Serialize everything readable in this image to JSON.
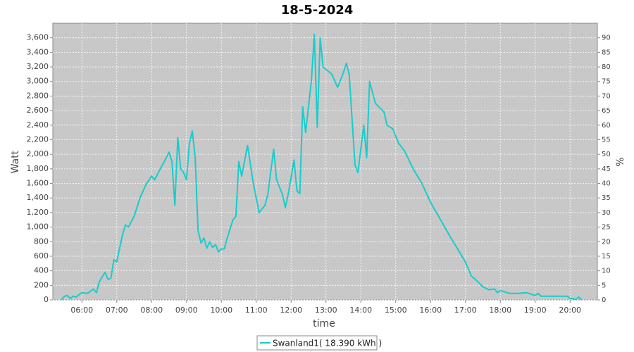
{
  "chart_data": {
    "type": "line",
    "title": "18-5-2024",
    "x_label": "time",
    "y_label": "Watt",
    "y2_label": "%",
    "x": [
      "05:25",
      "05:30",
      "05:35",
      "05:40",
      "05:45",
      "05:50",
      "06:00",
      "06:10",
      "06:20",
      "06:25",
      "06:30",
      "06:40",
      "06:45",
      "06:50",
      "06:55",
      "07:00",
      "07:10",
      "07:15",
      "07:20",
      "07:30",
      "07:40",
      "07:50",
      "08:00",
      "08:05",
      "08:15",
      "08:25",
      "08:30",
      "08:35",
      "08:40",
      "08:45",
      "08:50",
      "08:55",
      "09:00",
      "09:05",
      "09:10",
      "09:15",
      "09:20",
      "09:25",
      "09:30",
      "09:35",
      "09:40",
      "09:45",
      "09:50",
      "09:55",
      "10:00",
      "10:05",
      "10:10",
      "10:20",
      "10:25",
      "10:30",
      "10:35",
      "10:45",
      "10:55",
      "11:05",
      "11:15",
      "11:20",
      "11:30",
      "11:35",
      "11:45",
      "11:50",
      "11:55",
      "12:05",
      "12:10",
      "12:15",
      "12:20",
      "12:25",
      "12:35",
      "12:40",
      "12:45",
      "12:50",
      "12:55",
      "13:10",
      "13:20",
      "13:30",
      "13:35",
      "13:40",
      "13:50",
      "13:55",
      "14:05",
      "14:10",
      "14:15",
      "14:25",
      "14:40",
      "14:45",
      "14:55",
      "15:05",
      "15:15",
      "15:30",
      "15:45",
      "16:00",
      "16:10",
      "16:25",
      "16:35",
      "16:45",
      "17:00",
      "17:10",
      "17:20",
      "17:30",
      "17:40",
      "17:50",
      "17:55",
      "18:00",
      "18:15",
      "18:30",
      "18:45",
      "19:00",
      "19:05",
      "19:10",
      "19:20",
      "19:40",
      "19:55",
      "20:00",
      "20:10",
      "20:15",
      "20:20"
    ],
    "series": [
      {
        "name": "Swanland1( 18.390 kWh )",
        "color": "#19cccc",
        "values": [
          0,
          50,
          60,
          20,
          50,
          40,
          100,
          90,
          150,
          100,
          250,
          380,
          280,
          300,
          550,
          520,
          900,
          1030,
          1000,
          1150,
          1400,
          1580,
          1700,
          1650,
          1800,
          1950,
          2030,
          1900,
          1300,
          2230,
          1800,
          1750,
          1650,
          2150,
          2320,
          1950,
          950,
          780,
          850,
          710,
          800,
          720,
          760,
          660,
          700,
          700,
          850,
          1100,
          1150,
          1900,
          1700,
          2120,
          1600,
          1200,
          1300,
          1450,
          2070,
          1650,
          1450,
          1270,
          1450,
          1920,
          1500,
          1460,
          2650,
          2300,
          3020,
          3650,
          2370,
          3600,
          3200,
          3100,
          2920,
          3120,
          3250,
          3100,
          1850,
          1750,
          2400,
          1950,
          3000,
          2700,
          2580,
          2400,
          2350,
          2150,
          2050,
          1800,
          1600,
          1340,
          1200,
          990,
          850,
          720,
          520,
          330,
          260,
          180,
          140,
          150,
          100,
          130,
          90,
          90,
          100,
          60,
          90,
          50,
          50,
          50,
          50,
          20,
          10,
          40,
          0
        ]
      }
    ],
    "xlim": [
      "05:10",
      "20:47"
    ],
    "xticks": [
      "06:00",
      "07:00",
      "08:00",
      "09:00",
      "10:00",
      "11:00",
      "12:00",
      "13:00",
      "14:00",
      "15:00",
      "16:00",
      "17:00",
      "18:00",
      "19:00",
      "20:00"
    ],
    "ylim": [
      0,
      3800
    ],
    "yticks": [
      0,
      200,
      400,
      600,
      800,
      {
        "value": 1000,
        "label": "1,000"
      },
      {
        "value": 1200,
        "label": "1,200"
      },
      {
        "value": 1400,
        "label": "1,400"
      },
      {
        "value": 1600,
        "label": "1,600"
      },
      {
        "value": 1800,
        "label": "1,800"
      },
      {
        "value": 2000,
        "label": "2,000"
      },
      {
        "value": 2200,
        "label": "2,200"
      },
      {
        "value": 2400,
        "label": "2,400"
      },
      {
        "value": 2600,
        "label": "2,600"
      },
      {
        "value": 2800,
        "label": "2,800"
      },
      {
        "value": 3000,
        "label": "3,000"
      },
      {
        "value": 3200,
        "label": "3,200"
      },
      {
        "value": 3400,
        "label": "3,400"
      },
      {
        "value": 3600,
        "label": "3,600"
      }
    ],
    "y2lim": [
      0,
      95
    ],
    "y2ticks": [
      0,
      5,
      10,
      15,
      20,
      25,
      30,
      35,
      40,
      45,
      50,
      55,
      60,
      65,
      70,
      75,
      80,
      85,
      90
    ],
    "grid": true,
    "plot_background": "#c8c8c8",
    "legend": "bottom"
  }
}
